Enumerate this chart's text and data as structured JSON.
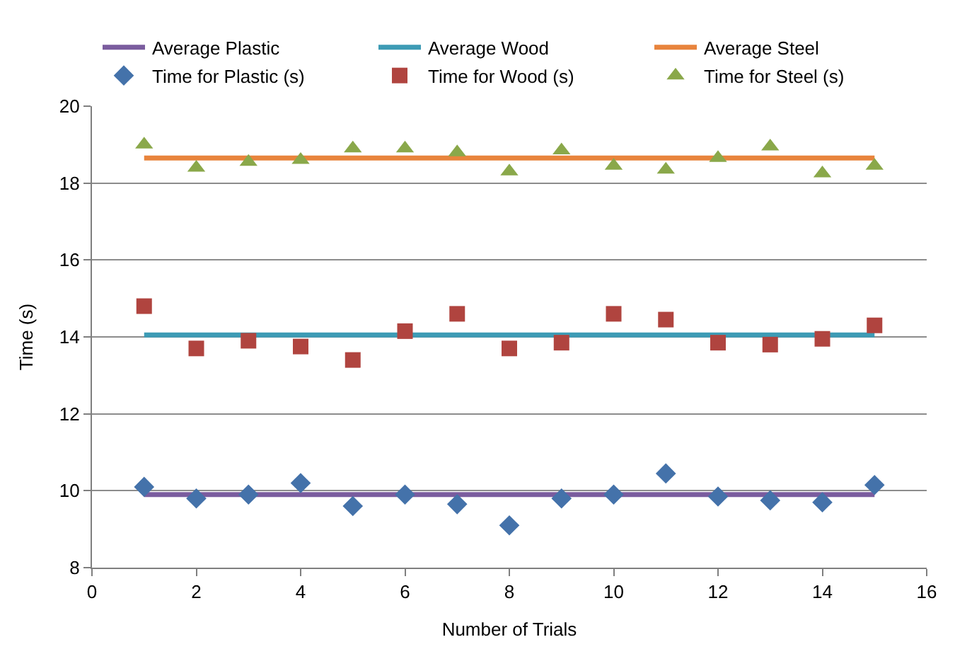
{
  "chart_data": {
    "type": "scatter",
    "xlabel": "Number of Trials",
    "ylabel": "Time (s)",
    "xlim": [
      0,
      16
    ],
    "xticks": [
      0,
      2,
      4,
      6,
      8,
      10,
      12,
      14,
      16
    ],
    "ylim": [
      8,
      20
    ],
    "yticks": [
      8,
      10,
      12,
      14,
      16,
      18,
      20
    ],
    "grid": "y",
    "legend": "top",
    "x": [
      1,
      2,
      3,
      4,
      5,
      6,
      7,
      8,
      9,
      10,
      11,
      12,
      13,
      14,
      15
    ],
    "series": [
      {
        "name": "Average Plastic",
        "type": "line",
        "marker": "none",
        "color": "#7a5c9e",
        "values": [
          9.9,
          9.9,
          9.9,
          9.9,
          9.9,
          9.9,
          9.9,
          9.9,
          9.9,
          9.9,
          9.9,
          9.9,
          9.9,
          9.9,
          9.9
        ]
      },
      {
        "name": "Average Wood",
        "type": "line",
        "marker": "none",
        "color": "#3d9bb5",
        "values": [
          14.05,
          14.05,
          14.05,
          14.05,
          14.05,
          14.05,
          14.05,
          14.05,
          14.05,
          14.05,
          14.05,
          14.05,
          14.05,
          14.05,
          14.05
        ]
      },
      {
        "name": "Average Steel",
        "type": "line",
        "marker": "none",
        "color": "#e8843c",
        "values": [
          18.65,
          18.65,
          18.65,
          18.65,
          18.65,
          18.65,
          18.65,
          18.65,
          18.65,
          18.65,
          18.65,
          18.65,
          18.65,
          18.65,
          18.65
        ]
      },
      {
        "name": "Time for Plastic (s)",
        "marker": "diamond",
        "color": "#4472aa",
        "values": [
          10.1,
          9.8,
          9.9,
          10.2,
          9.6,
          9.9,
          9.65,
          9.1,
          9.8,
          9.9,
          10.45,
          9.85,
          9.75,
          9.7,
          10.15
        ]
      },
      {
        "name": "Time for Wood (s)",
        "marker": "square",
        "color": "#b0443f",
        "values": [
          14.8,
          13.7,
          13.9,
          13.75,
          13.4,
          14.15,
          14.6,
          13.7,
          13.85,
          14.6,
          14.45,
          13.85,
          13.8,
          13.95,
          14.3
        ]
      },
      {
        "name": "Time for Steel (s)",
        "marker": "triangle",
        "color": "#8aa84a",
        "values": [
          19.0,
          18.4,
          18.55,
          18.6,
          18.9,
          18.9,
          18.8,
          18.3,
          18.85,
          18.45,
          18.35,
          18.65,
          18.95,
          18.25,
          18.45
        ]
      }
    ]
  }
}
